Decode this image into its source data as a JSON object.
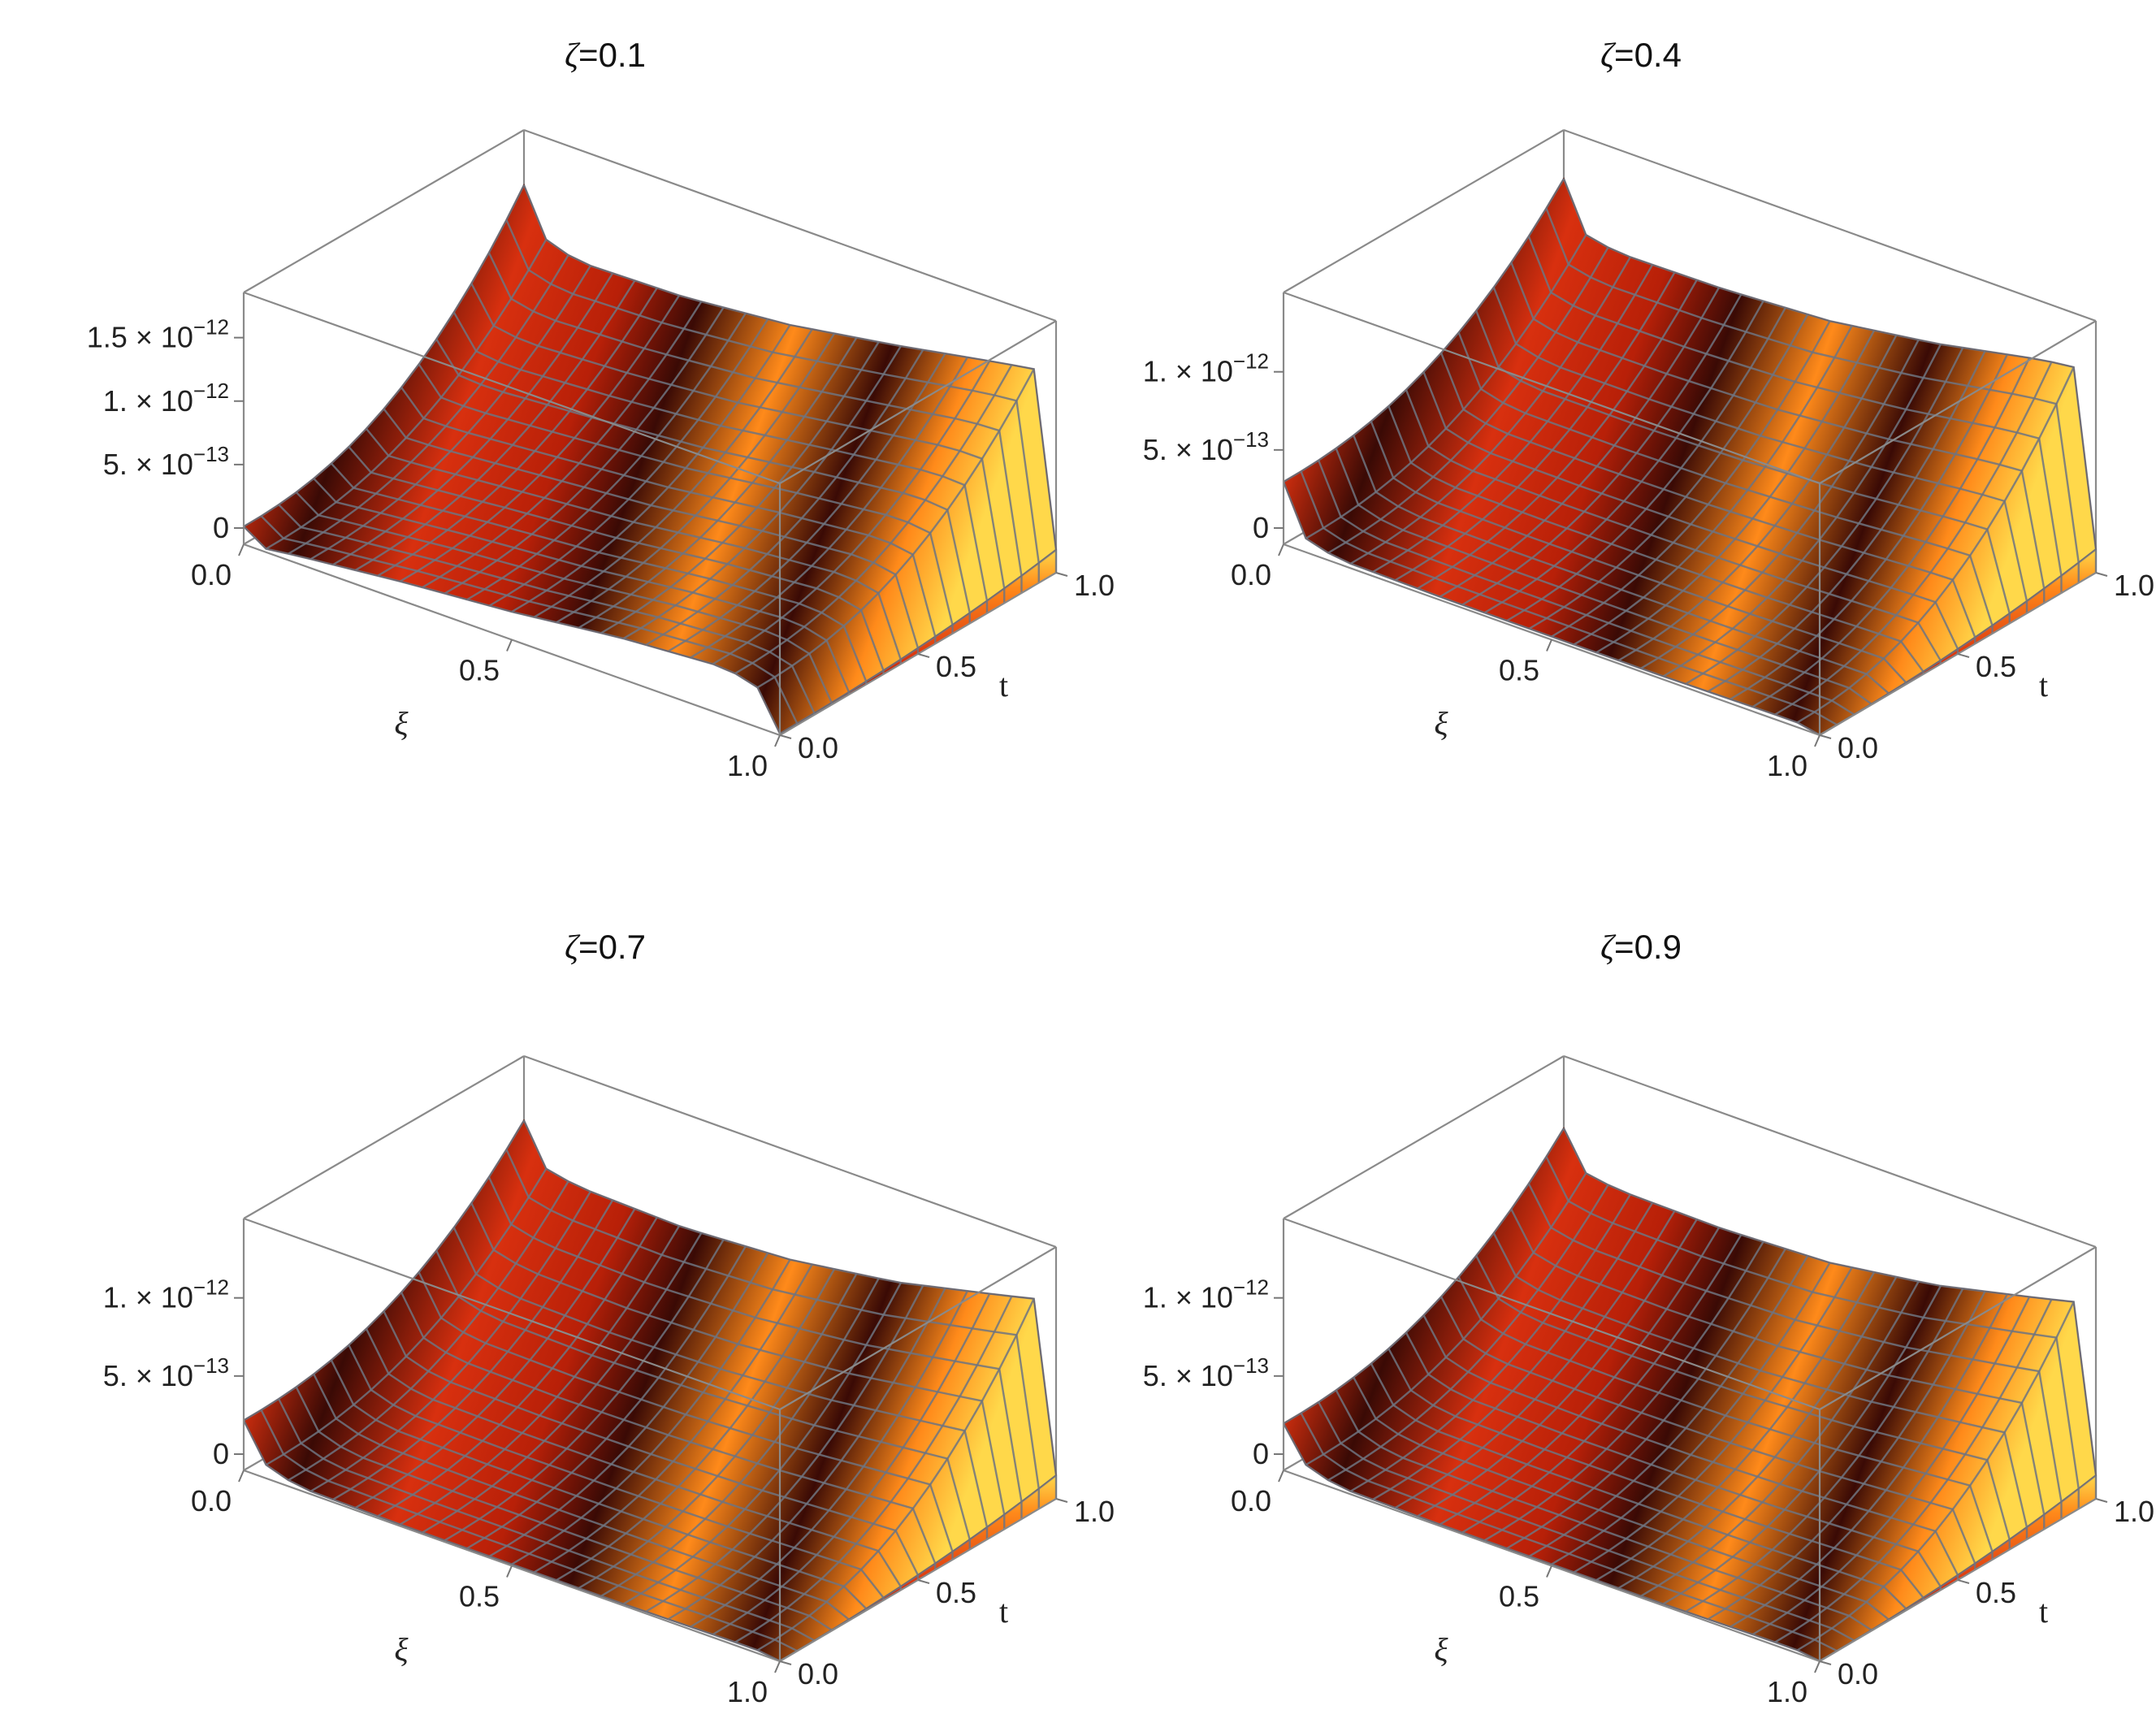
{
  "chart_data": [
    {
      "type": "surface3d",
      "title_symbol": "ζ",
      "title_value": "=0.1",
      "xlabel": "ξ",
      "ylabel": "t",
      "x_ticks": [
        "0.0",
        "0.5",
        "1.0"
      ],
      "y_ticks": [
        "0.0",
        "0.5",
        "1.0"
      ],
      "z_ticks": [
        {
          "value": 0,
          "mantissa": "0",
          "exp": ""
        },
        {
          "value": 5e-13,
          "mantissa": "5. × 10",
          "exp": "−13"
        },
        {
          "value": 1e-12,
          "mantissa": "1. × 10",
          "exp": "−12"
        },
        {
          "value": 1.5e-12,
          "mantissa": "1.5 × 10",
          "exp": "−12"
        }
      ],
      "xlim": [
        0,
        1
      ],
      "ylim": [
        0,
        1
      ],
      "zlim": [
        0,
        1.6e-12
      ],
      "t0_edge": [
        {
          "xi": 0.0,
          "z": 1.4e-13
        },
        {
          "xi": 0.03,
          "z": 2e-14
        },
        {
          "xi": 0.1,
          "z": 6e-14
        },
        {
          "xi": 0.3,
          "z": 1.5e-13
        },
        {
          "xi": 0.5,
          "z": 2.2e-13
        },
        {
          "xi": 0.7,
          "z": 3.2e-13
        },
        {
          "xi": 0.9,
          "z": 3.8e-13
        },
        {
          "xi": 0.97,
          "z": 3e-13
        },
        {
          "xi": 1.0,
          "z": 8e-14
        }
      ],
      "t1_edge": [
        {
          "xi": 0.0,
          "z": 1.55e-12
        },
        {
          "xi": 0.03,
          "z": 1.2e-12
        },
        {
          "xi": 0.1,
          "z": 1.1e-12
        },
        {
          "xi": 0.3,
          "z": 1.12e-12
        },
        {
          "xi": 0.5,
          "z": 1.2e-12
        },
        {
          "xi": 0.7,
          "z": 1.34e-12
        },
        {
          "xi": 0.9,
          "z": 1.5e-12
        },
        {
          "xi": 0.97,
          "z": 1.55e-12
        },
        {
          "xi": 1.0,
          "z": 1.2e-12
        }
      ]
    },
    {
      "type": "surface3d",
      "title_symbol": "ζ",
      "title_value": "=0.4",
      "xlabel": "ξ",
      "ylabel": "t",
      "x_ticks": [
        "0.0",
        "0.5",
        "1.0"
      ],
      "y_ticks": [
        "0.0",
        "0.5",
        "1.0"
      ],
      "z_ticks": [
        {
          "value": 0,
          "mantissa": "0",
          "exp": ""
        },
        {
          "value": 5e-13,
          "mantissa": "5. × 10",
          "exp": "−13"
        },
        {
          "value": 1e-12,
          "mantissa": "1. × 10",
          "exp": "−12"
        }
      ],
      "xlim": [
        0,
        1
      ],
      "ylim": [
        0,
        1
      ],
      "zlim": [
        0,
        1.3e-12
      ],
      "t0_edge": [
        {
          "xi": 0.0,
          "z": 4e-13
        },
        {
          "xi": 0.03,
          "z": 1e-13
        },
        {
          "xi": 0.1,
          "z": 3e-14
        },
        {
          "xi": 0.3,
          "z": 2e-14
        },
        {
          "xi": 0.5,
          "z": 2e-14
        },
        {
          "xi": 0.7,
          "z": 2e-14
        },
        {
          "xi": 0.9,
          "z": 3e-14
        },
        {
          "xi": 0.97,
          "z": 3e-14
        },
        {
          "xi": 1.0,
          "z": 1e-14
        }
      ],
      "t1_edge": [
        {
          "xi": 0.0,
          "z": 1.3e-12
        },
        {
          "xi": 0.03,
          "z": 1e-12
        },
        {
          "xi": 0.1,
          "z": 9.5e-13
        },
        {
          "xi": 0.3,
          "z": 9.6e-13
        },
        {
          "xi": 0.5,
          "z": 1e-12
        },
        {
          "xi": 0.7,
          "z": 1.1e-12
        },
        {
          "xi": 0.9,
          "z": 1.24e-12
        },
        {
          "xi": 0.97,
          "z": 1.27e-12
        },
        {
          "xi": 1.0,
          "z": 1e-12
        }
      ]
    },
    {
      "type": "surface3d",
      "title_symbol": "ζ",
      "title_value": "=0.7",
      "xlabel": "ξ",
      "ylabel": "t",
      "x_ticks": [
        "0.0",
        "0.5",
        "1.0"
      ],
      "y_ticks": [
        "0.0",
        "0.5",
        "1.0"
      ],
      "z_ticks": [
        {
          "value": 0,
          "mantissa": "0",
          "exp": ""
        },
        {
          "value": 5e-13,
          "mantissa": "5. × 10",
          "exp": "−13"
        },
        {
          "value": 1e-12,
          "mantissa": "1. × 10",
          "exp": "−12"
        }
      ],
      "xlim": [
        0,
        1
      ],
      "ylim": [
        0,
        1
      ],
      "zlim": [
        0,
        1.3e-12
      ],
      "t0_edge": [
        {
          "xi": 0.0,
          "z": 3.2e-13
        },
        {
          "xi": 0.03,
          "z": 1e-13
        },
        {
          "xi": 0.1,
          "z": 2e-14
        },
        {
          "xi": 0.3,
          "z": 1e-14
        },
        {
          "xi": 0.5,
          "z": 1e-14
        },
        {
          "xi": 0.7,
          "z": 1e-14
        },
        {
          "xi": 0.9,
          "z": 2e-14
        },
        {
          "xi": 0.97,
          "z": 2e-14
        },
        {
          "xi": 1.0,
          "z": 1e-14
        }
      ],
      "t1_edge": [
        {
          "xi": 0.0,
          "z": 1.2e-12
        },
        {
          "xi": 0.03,
          "z": 9.5e-13
        },
        {
          "xi": 0.1,
          "z": 9e-13
        },
        {
          "xi": 0.3,
          "z": 8.8e-13
        },
        {
          "xi": 0.5,
          "z": 9.2e-13
        },
        {
          "xi": 0.7,
          "z": 1.02e-12
        },
        {
          "xi": 0.9,
          "z": 1.18e-12
        },
        {
          "xi": 0.97,
          "z": 1.24e-12
        },
        {
          "xi": 1.0,
          "z": 1e-12
        }
      ]
    },
    {
      "type": "surface3d",
      "title_symbol": "ζ",
      "title_value": "=0.9",
      "xlabel": "ξ",
      "ylabel": "t",
      "x_ticks": [
        "0.0",
        "0.5",
        "1.0"
      ],
      "y_ticks": [
        "0.0",
        "0.5",
        "1.0"
      ],
      "z_ticks": [
        {
          "value": 0,
          "mantissa": "0",
          "exp": ""
        },
        {
          "value": 5e-13,
          "mantissa": "5. × 10",
          "exp": "−13"
        },
        {
          "value": 1e-12,
          "mantissa": "1. × 10",
          "exp": "−12"
        }
      ],
      "xlim": [
        0,
        1
      ],
      "ylim": [
        0,
        1
      ],
      "zlim": [
        0,
        1.3e-12
      ],
      "t0_edge": [
        {
          "xi": 0.0,
          "z": 3e-13
        },
        {
          "xi": 0.03,
          "z": 1e-13
        },
        {
          "xi": 0.1,
          "z": 2e-14
        },
        {
          "xi": 0.3,
          "z": 1e-14
        },
        {
          "xi": 0.5,
          "z": 1e-14
        },
        {
          "xi": 0.7,
          "z": 1e-14
        },
        {
          "xi": 0.9,
          "z": 2e-14
        },
        {
          "xi": 0.97,
          "z": 2e-14
        },
        {
          "xi": 1.0,
          "z": 1e-14
        }
      ],
      "t1_edge": [
        {
          "xi": 0.0,
          "z": 1.15e-12
        },
        {
          "xi": 0.03,
          "z": 9.2e-13
        },
        {
          "xi": 0.1,
          "z": 8.8e-13
        },
        {
          "xi": 0.3,
          "z": 8.7e-13
        },
        {
          "xi": 0.5,
          "z": 9e-13
        },
        {
          "xi": 0.7,
          "z": 1e-12
        },
        {
          "xi": 0.9,
          "z": 1.16e-12
        },
        {
          "xi": 0.97,
          "z": 1.22e-12
        },
        {
          "xi": 1.0,
          "z": 1e-12
        }
      ]
    }
  ],
  "colors": {
    "surface_dark": "#3a0a05",
    "surface_mid": "#d8300f",
    "surface_bright": "#ff8a1a",
    "surface_highlight": "#ffd84a",
    "mesh": "#6e7480",
    "box": "#8a8a8a"
  }
}
